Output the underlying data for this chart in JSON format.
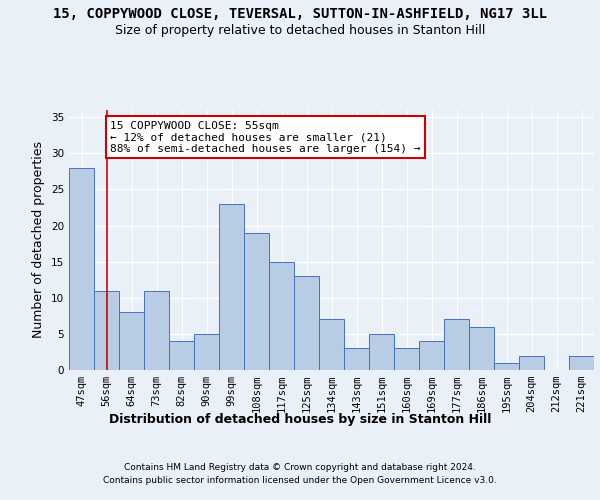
{
  "title_line1": "15, COPPYWOOD CLOSE, TEVERSAL, SUTTON-IN-ASHFIELD, NG17 3LL",
  "title_line2": "Size of property relative to detached houses in Stanton Hill",
  "xlabel": "Distribution of detached houses by size in Stanton Hill",
  "ylabel": "Number of detached properties",
  "footer_line1": "Contains HM Land Registry data © Crown copyright and database right 2024.",
  "footer_line2": "Contains public sector information licensed under the Open Government Licence v3.0.",
  "categories": [
    "47sqm",
    "56sqm",
    "64sqm",
    "73sqm",
    "82sqm",
    "90sqm",
    "99sqm",
    "108sqm",
    "117sqm",
    "125sqm",
    "134sqm",
    "143sqm",
    "151sqm",
    "160sqm",
    "169sqm",
    "177sqm",
    "186sqm",
    "195sqm",
    "204sqm",
    "212sqm",
    "221sqm"
  ],
  "values": [
    28,
    11,
    8,
    11,
    4,
    5,
    23,
    19,
    15,
    13,
    7,
    3,
    5,
    3,
    4,
    7,
    6,
    1,
    2,
    0,
    2
  ],
  "bar_color": "#b8cce4",
  "bar_edge_color": "#4472c4",
  "highlight_bar_index": 1,
  "highlight_line_color": "#cc0000",
  "annotation_text": "15 COPPYWOOD CLOSE: 55sqm\n← 12% of detached houses are smaller (21)\n88% of semi-detached houses are larger (154) →",
  "annotation_box_color": "#ffffff",
  "annotation_box_edge_color": "#cc0000",
  "ylim": [
    0,
    36
  ],
  "yticks": [
    0,
    5,
    10,
    15,
    20,
    25,
    30,
    35
  ],
  "bg_color": "#eaf0f8",
  "plot_bg_color": "#eaf0f8",
  "grid_color": "#ffffff",
  "title_fontsize": 10,
  "subtitle_fontsize": 9,
  "axis_label_fontsize": 9,
  "tick_fontsize": 7.5,
  "annotation_fontsize": 8
}
